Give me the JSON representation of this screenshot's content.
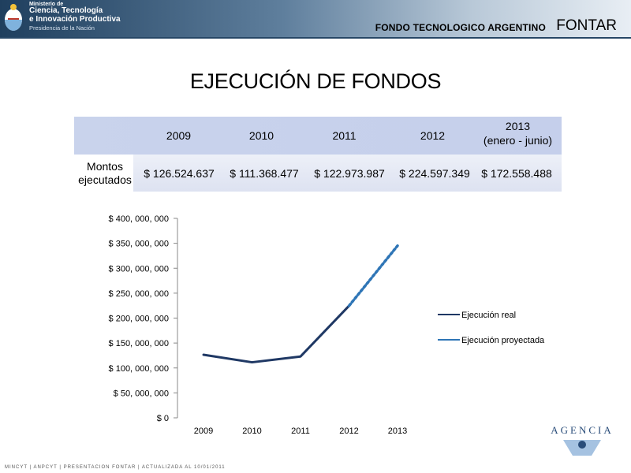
{
  "header": {
    "ministry_line1": "Ministerio de",
    "ministry_line2": "Ciencia, Tecnología",
    "ministry_line3": "e Innovación Productiva",
    "ministry_line4": "Presidencia de la Nación",
    "fondo_label": "FONDO TECNOLOGICO ARGENTINO",
    "fontar_label": "FONTAR"
  },
  "title": "EJECUCIÓN DE FONDOS",
  "table": {
    "row_label": [
      "Montos",
      "ejecutados"
    ],
    "columns": [
      {
        "label": "2009",
        "value": "$ 126.524.637"
      },
      {
        "label": "2010",
        "value": "$ 111.368.477"
      },
      {
        "label": "2011",
        "value": "$ 122.973.987"
      },
      {
        "label": "2012",
        "value": "$ 224.597.349"
      },
      {
        "label": [
          "2013",
          "(enero - junio)"
        ],
        "value": "$ 172.558.488"
      }
    ]
  },
  "chart_data": {
    "type": "line",
    "categories": [
      "2009",
      "2010",
      "2011",
      "2012",
      "2013"
    ],
    "y_tick_labels": [
      "$ 0",
      "$ 50, 000, 000",
      "$ 100, 000, 000",
      "$ 150, 000, 000",
      "$ 200, 000, 000",
      "$ 250, 000, 000",
      "$ 300, 000, 000",
      "$ 350, 000, 000",
      "$ 400, 000, 000"
    ],
    "ylim": [
      0,
      400000000
    ],
    "grid": false,
    "legend_position": "right",
    "series": [
      {
        "name": "Ejecución real",
        "color": "#1f3864",
        "style": "solid",
        "x": [
          "2009",
          "2010",
          "2011",
          "2012"
        ],
        "values": [
          126524637,
          111368477,
          122973987,
          224597349
        ]
      },
      {
        "name": "Ejecución proyectada",
        "color": "#2e75b6",
        "style": "dashed",
        "x": [
          "2012",
          "2013"
        ],
        "values": [
          224597349,
          345117000
        ]
      }
    ]
  },
  "logo_text": "AGENCIA",
  "footer": "MINCYT | ANPCYT | PRESENTACION FONTAR | ACTUALIZADA AL 10/01/2011"
}
